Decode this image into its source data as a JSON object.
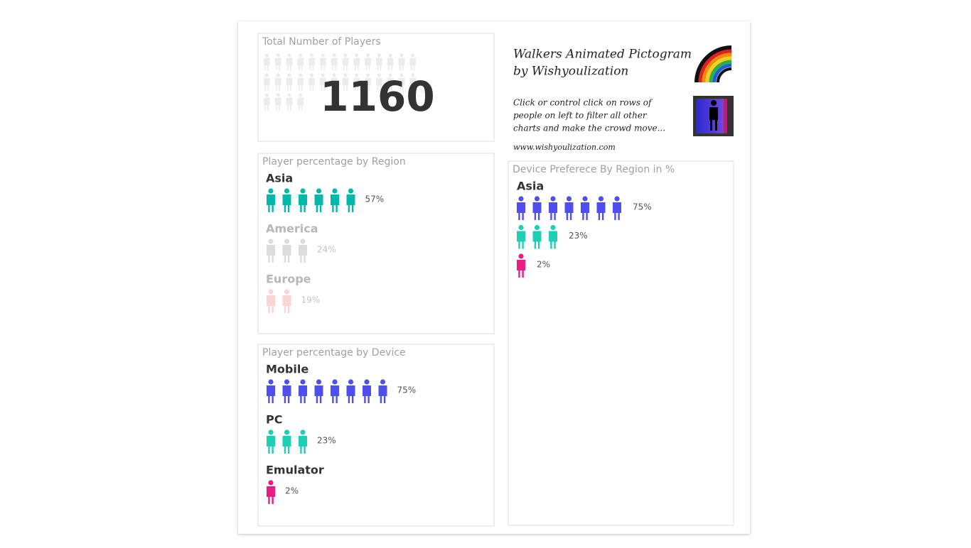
{
  "total_players": {
    "title": "Total Number of Players",
    "value": 1160
  },
  "info": {
    "title_lines": [
      "Walkers Animated Pictogram",
      "by Wishyoulization"
    ],
    "description_lines": [
      "Click or control click on rows of",
      "people on left to filter all other",
      "charts and make the crowd move..."
    ],
    "url": "www.wishyoulization.com"
  },
  "region_panel": {
    "title": "Player percentage by Region",
    "rows": [
      {
        "name": "Asia",
        "percent": "57%",
        "icons": 6,
        "color": "#01b8aa",
        "dimmed": false
      },
      {
        "name": "America",
        "percent": "24%",
        "icons": 3,
        "color": "#9aa0a0",
        "dimmed": true
      },
      {
        "name": "Europe",
        "percent": "19%",
        "icons": 2,
        "color": "#f08a8a",
        "dimmed": true
      }
    ]
  },
  "device_panel": {
    "title": "Player percentage by Device",
    "rows": [
      {
        "name": "Mobile",
        "percent": "75%",
        "icons": 8,
        "color": "#4f4ff0",
        "dimmed": false
      },
      {
        "name": "PC",
        "percent": "23%",
        "icons": 3,
        "color": "#1ecfb5",
        "dimmed": false
      },
      {
        "name": "Emulator",
        "percent": "2%",
        "icons": 1,
        "color": "#ea1e82",
        "dimmed": false
      }
    ]
  },
  "device_region_panel": {
    "title": "Device Preferece By Region in %",
    "region": "Asia",
    "rows": [
      {
        "percent": "75%",
        "icons": 7,
        "color": "#4f4ff0"
      },
      {
        "percent": "23%",
        "icons": 3,
        "color": "#1ecfb5"
      },
      {
        "percent": "2%",
        "icons": 1,
        "color": "#ea1e82"
      }
    ]
  }
}
